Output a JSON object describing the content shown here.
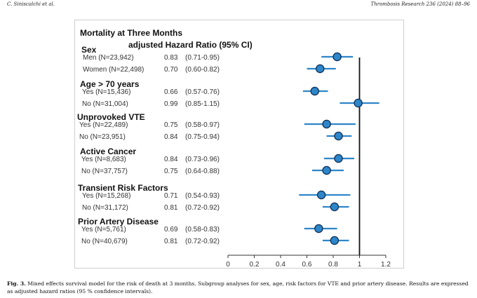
{
  "header": {
    "left": "C. Siniscalchi et al.",
    "right": "Thrombosis Research 236 (2024) 88–96"
  },
  "chart_data": {
    "type": "forest",
    "title": "Mortality at Three Months",
    "subtitle": "adjusted  Hazard Ratio (95% CI)",
    "xlim": [
      0,
      1.2
    ],
    "xticks": [
      "0",
      "0.2",
      "0.4",
      "0.6",
      "0.8",
      "1",
      "1.2"
    ],
    "xtick_values": [
      0,
      0.2,
      0.4,
      0.6,
      0.8,
      1,
      1.2
    ],
    "reference_line": 1,
    "point_color": "#2e86c9",
    "point_edge_color": "#0c2f57",
    "ci_color": "#2e86c9",
    "groups": [
      {
        "name": "Sex",
        "rows": [
          {
            "label": "Men (N=23,942)",
            "hr_text": "0.83",
            "ci_text": "(0.71-0.95)",
            "hr": 0.83,
            "lo": 0.71,
            "hi": 0.95
          },
          {
            "label": "Women (N=22,498)",
            "hr_text": "0.70",
            "ci_text": "(0.60-0.82)",
            "hr": 0.7,
            "lo": 0.6,
            "hi": 0.82
          }
        ]
      },
      {
        "name": "Age > 70 years",
        "rows": [
          {
            "label": "Yes (N=15,436)",
            "hr_text": "0.66",
            "ci_text": "(0.57-0.76)",
            "hr": 0.66,
            "lo": 0.57,
            "hi": 0.76
          },
          {
            "label": "No (N=31,004)",
            "hr_text": "0.99",
            "ci_text": "(0.85-1.15)",
            "hr": 0.99,
            "lo": 0.85,
            "hi": 1.15
          }
        ]
      },
      {
        "name": "Unprovoked VTE",
        "rows": [
          {
            "label": "Yes (N=22,489)",
            "hr_text": "0.75",
            "ci_text": "(0.58-0.97)",
            "hr": 0.75,
            "lo": 0.58,
            "hi": 0.97
          },
          {
            "label": "No (N=23,951)",
            "hr_text": "0.84",
            "ci_text": "(0.75-0.94)",
            "hr": 0.84,
            "lo": 0.75,
            "hi": 0.94
          }
        ]
      },
      {
        "name": "Active Cancer",
        "rows": [
          {
            "label": "Yes (N=8,683)",
            "hr_text": "0.84",
            "ci_text": "(0.73-0.96)",
            "hr": 0.84,
            "lo": 0.73,
            "hi": 0.96
          },
          {
            "label": "No (N=37,757)",
            "hr_text": "0.75",
            "ci_text": "(0.64-0.88)",
            "hr": 0.75,
            "lo": 0.64,
            "hi": 0.88
          }
        ]
      },
      {
        "name": "Transient Risk Factors",
        "rows": [
          {
            "label": "Yes (N=15,268)",
            "hr_text": "0.71",
            "ci_text": "(0.54-0.93)",
            "hr": 0.71,
            "lo": 0.54,
            "hi": 0.93
          },
          {
            "label": "No (N=31,172)",
            "hr_text": "0.81",
            "ci_text": "(0.72-0.92)",
            "hr": 0.81,
            "lo": 0.72,
            "hi": 0.92
          }
        ]
      },
      {
        "name": "Prior Artery Disease",
        "rows": [
          {
            "label": "Yes (N=5,761)",
            "hr_text": "0.69",
            "ci_text": "(0.58-0.83)",
            "hr": 0.69,
            "lo": 0.58,
            "hi": 0.83
          },
          {
            "label": "No (N=40,679)",
            "hr_text": "0.81",
            "ci_text": "(0.72-0.92)",
            "hr": 0.81,
            "lo": 0.72,
            "hi": 0.92
          }
        ]
      }
    ]
  },
  "caption": {
    "label": "Fig. 3.",
    "text": " Mixed effects survival model for the risk of death at 3 months. Subgroup analyses for sex, age, risk factors for VTE and prior artery disease. Results are expressed as adjusted hazard ratios (95 % confidence intervals)."
  }
}
